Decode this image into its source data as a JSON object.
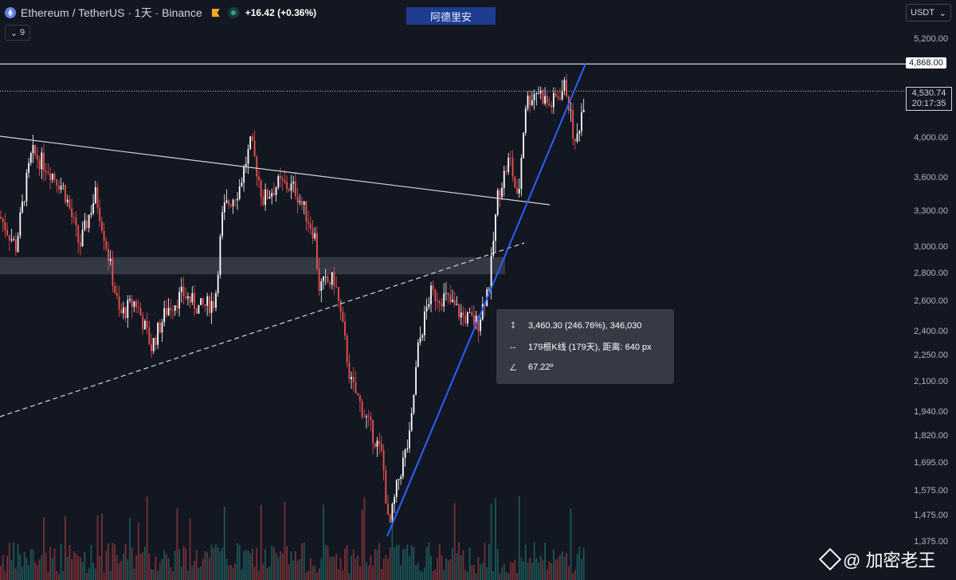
{
  "header": {
    "symbol": "Ethereum / TetherUS · 1天 · Binance",
    "change": "+16.42 (+0.36%)",
    "indicator_count": "9"
  },
  "watermark": "阿德里安",
  "currency": {
    "label": "USDT"
  },
  "price_axis": {
    "labels": [
      "5,200.00",
      "4,868.00",
      "4,530.74",
      "4,000.00",
      "3,600.00",
      "3,300.00",
      "3,000.00",
      "2,800.00",
      "2,600.00",
      "2,400.00",
      "2,250.00",
      "2,100.00",
      "1,940.00",
      "1,820.00",
      "1,695.00",
      "1,575.00",
      "1,475.00",
      "1,375.00"
    ],
    "levels": [
      5200,
      4868,
      4530.74,
      4000,
      3600,
      3300,
      3000,
      2800,
      2600,
      2400,
      2250,
      2100,
      1940,
      1820,
      1695,
      1575,
      1475,
      1375
    ]
  },
  "horizontal_line": {
    "value": "4,868.00"
  },
  "current_price": {
    "value": "4,530.74",
    "countdown": "20:17:35"
  },
  "measure_tooltip": {
    "price_range": "3,460.30 (246.76%), 346,030",
    "bars_range": "179根K线 (179天), 距离: 640 px",
    "angle": "67.22º"
  },
  "branding": {
    "text": "@ 加密老王"
  },
  "colors": {
    "background": "#131722",
    "up": "#ffffff",
    "down": "#ef5350",
    "trend_blue": "#2962ff",
    "volume_up": "#26a69a",
    "volume_down": "#ef5350"
  }
}
